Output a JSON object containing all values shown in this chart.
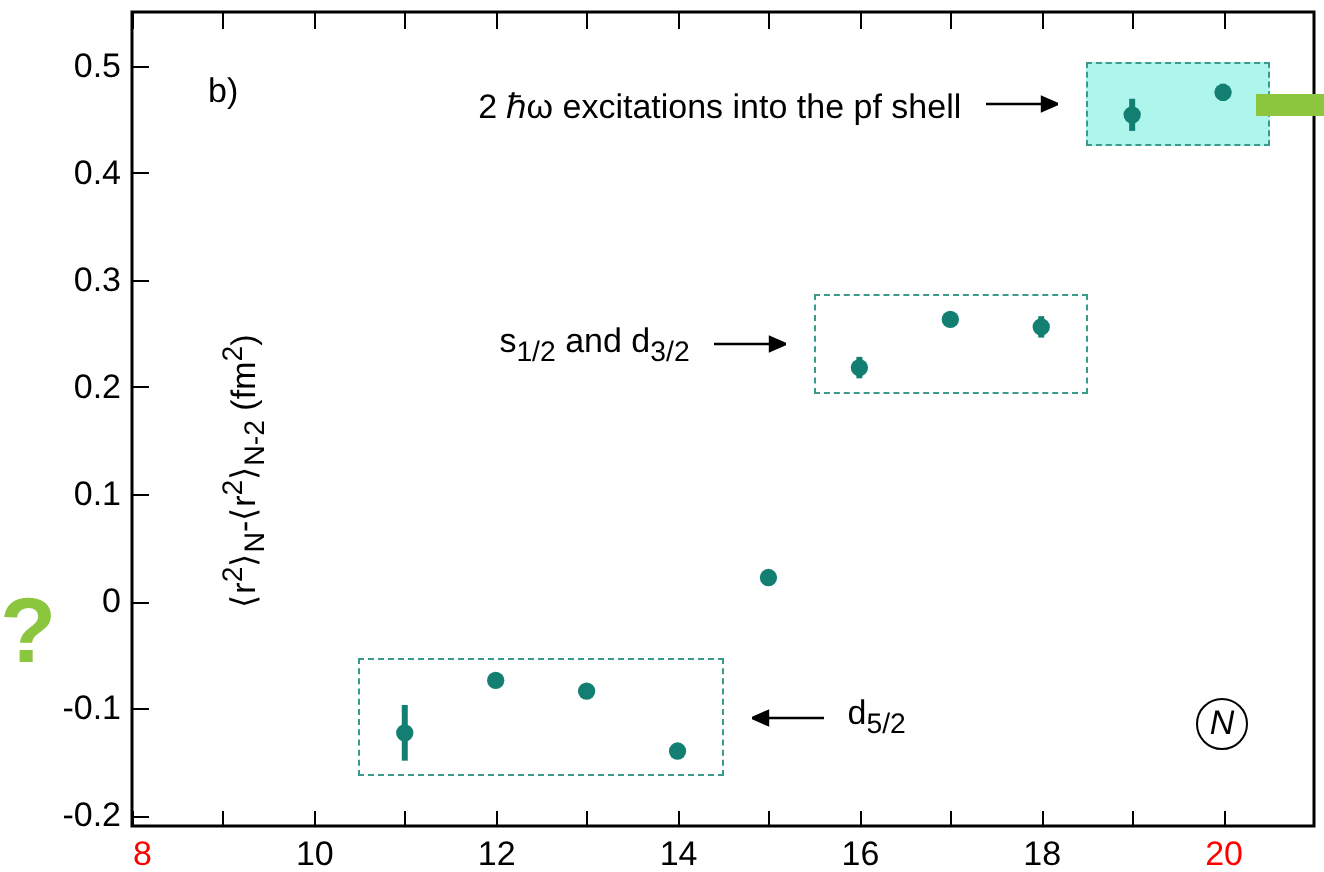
{
  "chart_data": {
    "type": "scatter",
    "ylabel": "⟨r$^{2}$⟩$_{N}$-⟨r$^{2}$⟩$_{N-2}$ (fm$^{2}$)",
    "x": [
      11,
      12,
      13,
      14,
      15,
      16,
      17,
      18,
      19,
      20
    ],
    "series": [
      {
        "color": "#127f72",
        "values": [
          -0.123,
          -0.074,
          -0.084,
          -0.14,
          0.022,
          0.218,
          0.263,
          0.256,
          0.454,
          0.475
        ],
        "errors": [
          0.026,
          null,
          null,
          null,
          null,
          0.01,
          null,
          0.01,
          0.015,
          0.008
        ]
      }
    ],
    "xlim": [
      8,
      21
    ],
    "ylim": [
      -0.21,
      0.55
    ],
    "xticks": [
      8,
      {
        "value": 9,
        "label": null
      },
      10,
      {
        "value": 11,
        "label": null
      },
      12,
      {
        "value": 13,
        "label": null
      },
      14,
      {
        "value": 15,
        "label": null
      },
      16,
      {
        "value": 17,
        "label": null
      },
      18,
      {
        "value": 19,
        "label": null
      },
      20
    ],
    "yticks": [
      -0.2,
      -0.1,
      0,
      0.1,
      0.2,
      0.3,
      0.4,
      0.5
    ],
    "marker": "circle",
    "grid": false,
    "annotations": [
      "b)",
      "2 ℏω excitations into the pf shell",
      "s$_{1/2}$ and d$_{3/2}$",
      "d$_{5/2}$",
      "N",
      "?"
    ]
  }
}
